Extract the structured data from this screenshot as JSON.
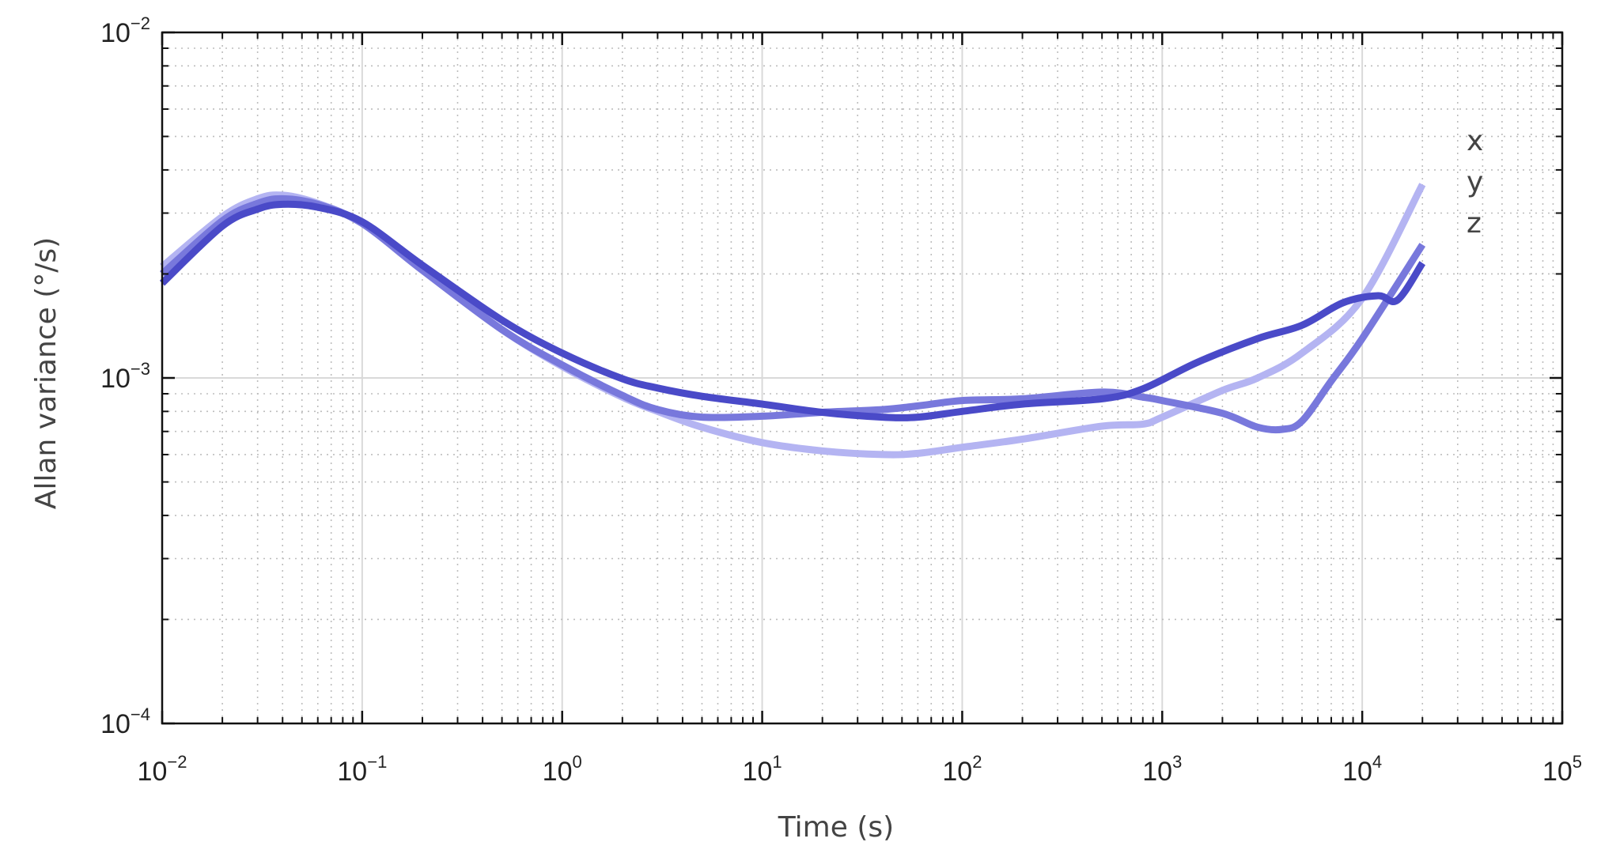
{
  "chart_data": {
    "type": "line",
    "xlabel": "Time (s)",
    "ylabel": "Allan variance (°/s)",
    "x_scale": "log",
    "y_scale": "log",
    "xlim": [
      0.01,
      100000
    ],
    "ylim": [
      0.0001,
      0.01
    ],
    "grid": true,
    "x_ticks": [
      {
        "base": "10",
        "exp": "−2"
      },
      {
        "base": "10",
        "exp": "−1"
      },
      {
        "base": "10",
        "exp": "0"
      },
      {
        "base": "10",
        "exp": "1"
      },
      {
        "base": "10",
        "exp": "2"
      },
      {
        "base": "10",
        "exp": "3"
      },
      {
        "base": "10",
        "exp": "4"
      },
      {
        "base": "10",
        "exp": "5"
      }
    ],
    "y_ticks": [
      {
        "base": "10",
        "exp": "−4"
      },
      {
        "base": "10",
        "exp": "−3"
      },
      {
        "base": "10",
        "exp": "−2"
      }
    ],
    "legend_position": "right",
    "series": [
      {
        "name": "x",
        "color": "#4a4ac8",
        "x": [
          0.01,
          0.02,
          0.03,
          0.04,
          0.06,
          0.1,
          0.2,
          0.5,
          1,
          2,
          3,
          5,
          10,
          20,
          40,
          60,
          100,
          200,
          500,
          800,
          1500,
          3000,
          5000,
          8000,
          12000,
          15000,
          20000
        ],
        "y": [
          0.00188,
          0.00275,
          0.00308,
          0.00318,
          0.00312,
          0.00283,
          0.00212,
          0.00147,
          0.00118,
          0.000995,
          0.000935,
          0.000885,
          0.00084,
          0.000795,
          0.00077,
          0.00077,
          0.0008,
          0.00084,
          0.00087,
          0.00093,
          0.00111,
          0.0013,
          0.00142,
          0.00165,
          0.00173,
          0.00168,
          0.00215
        ]
      },
      {
        "name": "y",
        "color": "#b4b4f2",
        "x": [
          0.01,
          0.02,
          0.03,
          0.04,
          0.06,
          0.1,
          0.2,
          0.5,
          1,
          2,
          3,
          5,
          10,
          20,
          40,
          60,
          100,
          200,
          500,
          800,
          1000,
          2000,
          3000,
          5000,
          10000,
          20000
        ],
        "y": [
          0.0021,
          0.00293,
          0.0033,
          0.00338,
          0.0032,
          0.0028,
          0.00205,
          0.00138,
          0.00108,
          0.00088,
          0.0008,
          0.00072,
          0.00065,
          0.000615,
          0.0006,
          0.000605,
          0.00063,
          0.000665,
          0.000725,
          0.000735,
          0.00077,
          0.00092,
          0.001,
          0.00118,
          0.0017,
          0.00363
        ]
      },
      {
        "name": "z",
        "color": "#7878dc",
        "x": [
          0.01,
          0.02,
          0.03,
          0.04,
          0.06,
          0.1,
          0.2,
          0.5,
          1,
          2,
          3,
          5,
          10,
          20,
          40,
          60,
          100,
          200,
          500,
          800,
          1000,
          2000,
          3000,
          4000,
          5000,
          7000,
          10000,
          20000
        ],
        "y": [
          0.002,
          0.00285,
          0.0032,
          0.0033,
          0.00318,
          0.0028,
          0.00205,
          0.00138,
          0.00109,
          0.00089,
          0.00081,
          0.00077,
          0.000775,
          0.000795,
          0.00081,
          0.00083,
          0.00086,
          0.00087,
          0.00091,
          0.00088,
          0.00086,
          0.00079,
          0.00072,
          0.00071,
          0.00075,
          0.00098,
          0.0013,
          0.00243
        ]
      }
    ]
  }
}
